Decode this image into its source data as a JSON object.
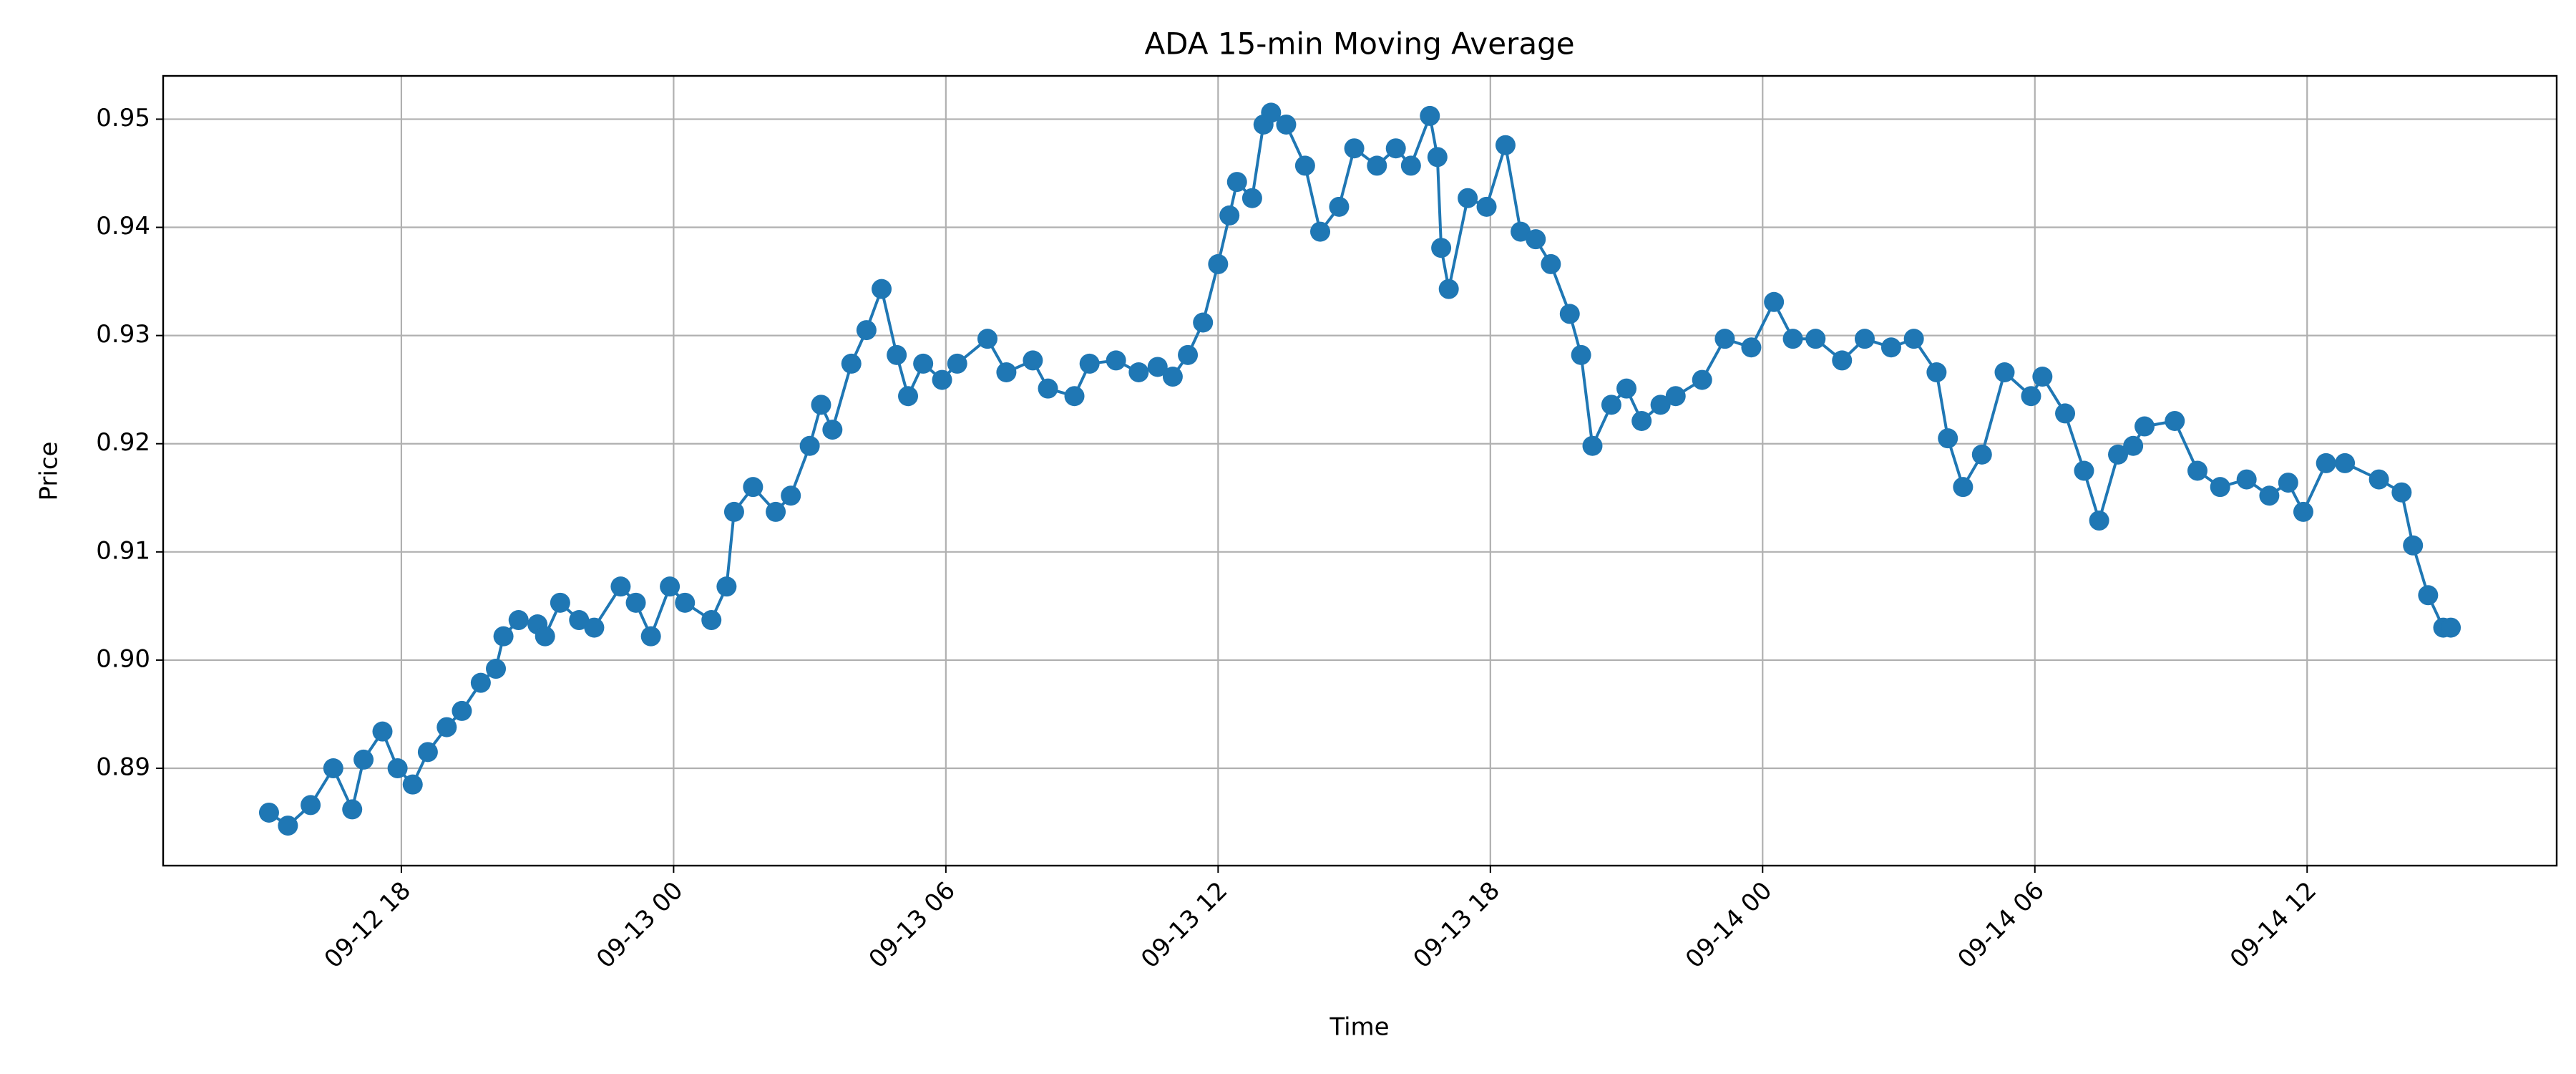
{
  "chart_data": {
    "type": "line",
    "title": "ADA 15-min Moving Average",
    "x_label": "Time",
    "y_label": "Price",
    "x": [
      "09-12 15:05",
      "09-12 15:30",
      "09-12 16:00",
      "09-12 16:30",
      "09-12 16:55",
      "09-12 17:10",
      "09-12 17:35",
      "09-12 17:55",
      "09-12 18:15",
      "09-12 18:35",
      "09-12 19:00",
      "09-12 19:20",
      "09-12 19:45",
      "09-12 20:05",
      "09-12 20:15",
      "09-12 20:35",
      "09-12 21:00",
      "09-12 21:10",
      "09-12 21:30",
      "09-12 21:55",
      "09-12 22:15",
      "09-12 22:50",
      "09-12 23:10",
      "09-12 23:30",
      "09-12 23:55",
      "09-13 00:15",
      "09-13 00:50",
      "09-13 01:10",
      "09-13 01:20",
      "09-13 01:45",
      "09-13 02:15",
      "09-13 02:35",
      "09-13 03:00",
      "09-13 03:15",
      "09-13 03:30",
      "09-13 03:55",
      "09-13 04:15",
      "09-13 04:35",
      "09-13 04:55",
      "09-13 05:10",
      "09-13 05:30",
      "09-13 05:55",
      "09-13 06:15",
      "09-13 06:55",
      "09-13 07:20",
      "09-13 07:55",
      "09-13 08:15",
      "09-13 08:50",
      "09-13 09:10",
      "09-13 09:45",
      "09-13 10:15",
      "09-13 10:40",
      "09-13 11:00",
      "09-13 11:20",
      "09-13 11:40",
      "09-13 12:00",
      "09-13 12:15",
      "09-13 12:25",
      "09-13 12:45",
      "09-13 13:00",
      "09-13 13:10",
      "09-13 13:30",
      "09-13 13:55",
      "09-13 14:15",
      "09-13 14:40",
      "09-13 15:00",
      "09-13 15:30",
      "09-13 15:55",
      "09-13 16:15",
      "09-13 16:40",
      "09-13 16:50",
      "09-13 16:55",
      "09-13 17:05",
      "09-13 17:30",
      "09-13 17:55",
      "09-13 18:20",
      "09-13 18:40",
      "09-13 19:00",
      "09-13 19:20",
      "09-13 19:45",
      "09-13 20:00",
      "09-13 20:15",
      "09-13 20:40",
      "09-13 21:00",
      "09-13 21:20",
      "09-13 21:45",
      "09-13 22:05",
      "09-13 22:40",
      "09-13 23:10",
      "09-13 23:45",
      "09-14 00:15",
      "09-14 00:40",
      "09-14 01:10",
      "09-14 01:45",
      "09-14 02:15",
      "09-14 02:50",
      "09-14 03:20",
      "09-14 03:50",
      "09-14 04:05",
      "09-14 04:25",
      "09-14 04:50",
      "09-14 05:20",
      "09-14 05:55",
      "09-14 06:10",
      "09-14 06:40",
      "09-14 07:05",
      "09-14 07:25",
      "09-14 07:50",
      "09-14 08:10",
      "09-14 08:25",
      "09-14 09:05",
      "09-14 09:35",
      "09-14 10:05",
      "09-14 10:40",
      "09-14 11:10",
      "09-14 11:35",
      "09-14 11:55",
      "09-14 12:25",
      "09-14 12:50",
      "09-14 13:35",
      "09-14 14:05",
      "09-14 14:20",
      "09-14 14:40",
      "09-14 15:00",
      "09-14 15:10"
    ],
    "series": [
      {
        "name": "ADA",
        "color": "#1f77b4",
        "values": [
          0.8859,
          0.8847,
          0.8866,
          0.89,
          0.8862,
          0.8908,
          0.8934,
          0.89,
          0.8885,
          0.8915,
          0.8938,
          0.8953,
          0.8979,
          0.8992,
          0.9022,
          0.9037,
          0.9033,
          0.9022,
          0.9053,
          0.9037,
          0.903,
          0.9068,
          0.9053,
          0.9022,
          0.9068,
          0.9053,
          0.9037,
          0.9068,
          0.9137,
          0.916,
          0.9137,
          0.9152,
          0.9198,
          0.9236,
          0.9213,
          0.9274,
          0.9305,
          0.9343,
          0.9282,
          0.9244,
          0.9274,
          0.9259,
          0.9274,
          0.9297,
          0.9266,
          0.9277,
          0.9251,
          0.9244,
          0.9274,
          0.9277,
          0.9266,
          0.9271,
          0.9262,
          0.9282,
          0.9312,
          0.9366,
          0.9411,
          0.9442,
          0.9427,
          0.9495,
          0.9506,
          0.9495,
          0.9457,
          0.9396,
          0.9419,
          0.9473,
          0.9457,
          0.9473,
          0.9457,
          0.9503,
          0.9465,
          0.9381,
          0.9343,
          0.9427,
          0.9419,
          0.9476,
          0.9396,
          0.9389,
          0.9366,
          0.932,
          0.9282,
          0.9198,
          0.9236,
          0.9251,
          0.9221,
          0.9236,
          0.9244,
          0.9259,
          0.9297,
          0.9289,
          0.9331,
          0.9297,
          0.9297,
          0.9277,
          0.9297,
          0.9289,
          0.9297,
          0.9266,
          0.9205,
          0.916,
          0.919,
          0.9266,
          0.9244,
          0.9262,
          0.9228,
          0.9175,
          0.9129,
          0.919,
          0.9198,
          0.9216,
          0.9221,
          0.9175,
          0.916,
          0.9167,
          0.9152,
          0.9164,
          0.9137,
          0.9182,
          0.9182,
          0.9167,
          0.9155,
          0.9106,
          0.906,
          0.903,
          0.903
        ]
      }
    ],
    "xlim": [
      "09-12 12:45",
      "09-14 17:30"
    ],
    "xticks": [
      "09-12 18",
      "09-13 00",
      "09-13 06",
      "09-13 12",
      "09-13 18",
      "09-14 00",
      "09-14 06",
      "09-14 12"
    ],
    "ylim": [
      0.881,
      0.954
    ],
    "yticks": [
      0.89,
      {
        "value": 0.9,
        "label": "0.90"
      },
      0.91,
      0.92,
      0.93,
      0.94,
      0.95
    ],
    "grid": true
  }
}
